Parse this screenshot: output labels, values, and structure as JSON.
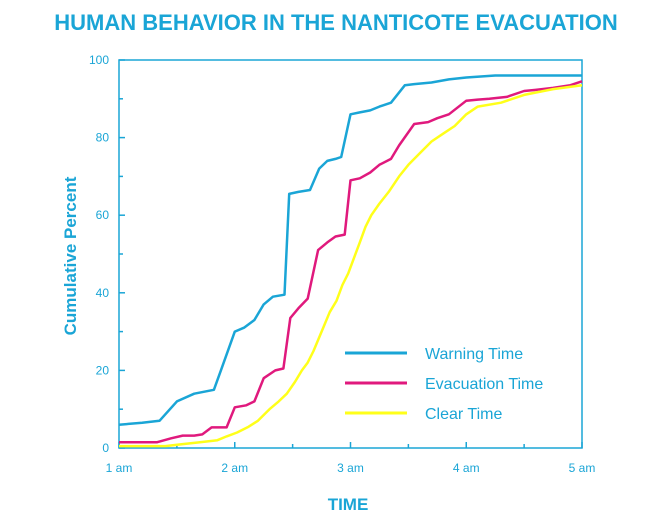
{
  "chart_data": {
    "type": "line",
    "title": "HUMAN BEHAVIOR IN THE NANTICOTE EVACUATION",
    "xlabel": "TIME",
    "ylabel": "Cumulative Percent",
    "x_ticks": [
      "1 am",
      "2 am",
      "3 am",
      "4 am",
      "5 am"
    ],
    "xlim": [
      1,
      5
    ],
    "y_ticks": [
      "0",
      "20",
      "40",
      "60",
      "80",
      "100"
    ],
    "ylim": [
      0,
      100
    ],
    "grid": false,
    "legend_position": "bottom-right",
    "colors": {
      "axis": "#1aa5d6",
      "title": "#1aa5d6"
    },
    "series": [
      {
        "name": "Warning Time",
        "color": "#1aa5d6",
        "points": [
          [
            1.0,
            6
          ],
          [
            1.2,
            6.5
          ],
          [
            1.35,
            7
          ],
          [
            1.5,
            12
          ],
          [
            1.65,
            14
          ],
          [
            1.82,
            15
          ],
          [
            1.88,
            20
          ],
          [
            2.0,
            30
          ],
          [
            2.08,
            31
          ],
          [
            2.17,
            33
          ],
          [
            2.25,
            37
          ],
          [
            2.33,
            39
          ],
          [
            2.43,
            39.5
          ],
          [
            2.47,
            65.5
          ],
          [
            2.55,
            66
          ],
          [
            2.65,
            66.5
          ],
          [
            2.73,
            72
          ],
          [
            2.8,
            74
          ],
          [
            2.87,
            74.5
          ],
          [
            2.92,
            75
          ],
          [
            3.0,
            86
          ],
          [
            3.08,
            86.5
          ],
          [
            3.17,
            87
          ],
          [
            3.25,
            88
          ],
          [
            3.35,
            89
          ],
          [
            3.47,
            93.5
          ],
          [
            3.55,
            93.8
          ],
          [
            3.7,
            94.2
          ],
          [
            3.85,
            95
          ],
          [
            4.0,
            95.5
          ],
          [
            4.25,
            96
          ],
          [
            4.5,
            96
          ],
          [
            5.0,
            96
          ]
        ]
      },
      {
        "name": "Evacuation Time",
        "color": "#e0197d",
        "points": [
          [
            1.0,
            1.5
          ],
          [
            1.33,
            1.5
          ],
          [
            1.45,
            2.5
          ],
          [
            1.55,
            3.2
          ],
          [
            1.65,
            3.2
          ],
          [
            1.72,
            3.5
          ],
          [
            1.8,
            5.3
          ],
          [
            1.93,
            5.3
          ],
          [
            2.0,
            10.5
          ],
          [
            2.1,
            11
          ],
          [
            2.17,
            12
          ],
          [
            2.25,
            18
          ],
          [
            2.35,
            20
          ],
          [
            2.42,
            20.5
          ],
          [
            2.48,
            33.5
          ],
          [
            2.55,
            36
          ],
          [
            2.63,
            38.5
          ],
          [
            2.72,
            51
          ],
          [
            2.8,
            53
          ],
          [
            2.87,
            54.5
          ],
          [
            2.95,
            55
          ],
          [
            3.0,
            69
          ],
          [
            3.08,
            69.5
          ],
          [
            3.17,
            71
          ],
          [
            3.25,
            73
          ],
          [
            3.35,
            74.5
          ],
          [
            3.42,
            78
          ],
          [
            3.55,
            83.5
          ],
          [
            3.67,
            84
          ],
          [
            3.75,
            85
          ],
          [
            3.85,
            86
          ],
          [
            4.0,
            89.5
          ],
          [
            4.1,
            89.8
          ],
          [
            4.2,
            90
          ],
          [
            4.35,
            90.5
          ],
          [
            4.5,
            92
          ],
          [
            4.6,
            92.3
          ],
          [
            4.75,
            92.8
          ],
          [
            4.9,
            93.5
          ],
          [
            5.0,
            94.5
          ]
        ]
      },
      {
        "name": "Clear Time",
        "color": "#ffff1a",
        "points": [
          [
            1.0,
            0.5
          ],
          [
            1.4,
            0.5
          ],
          [
            1.55,
            1
          ],
          [
            1.7,
            1.5
          ],
          [
            1.85,
            2
          ],
          [
            1.93,
            3
          ],
          [
            2.02,
            4
          ],
          [
            2.12,
            5.5
          ],
          [
            2.2,
            7
          ],
          [
            2.3,
            10
          ],
          [
            2.38,
            12
          ],
          [
            2.45,
            14
          ],
          [
            2.52,
            17
          ],
          [
            2.58,
            20
          ],
          [
            2.63,
            22
          ],
          [
            2.68,
            25
          ],
          [
            2.75,
            30
          ],
          [
            2.82,
            35
          ],
          [
            2.88,
            38
          ],
          [
            2.93,
            42
          ],
          [
            2.98,
            45
          ],
          [
            3.03,
            49
          ],
          [
            3.08,
            53
          ],
          [
            3.13,
            57
          ],
          [
            3.18,
            60
          ],
          [
            3.25,
            63
          ],
          [
            3.33,
            66
          ],
          [
            3.42,
            70
          ],
          [
            3.5,
            73
          ],
          [
            3.6,
            76
          ],
          [
            3.7,
            79
          ],
          [
            3.8,
            81
          ],
          [
            3.9,
            83
          ],
          [
            4.0,
            86
          ],
          [
            4.1,
            88
          ],
          [
            4.3,
            89
          ],
          [
            4.5,
            91
          ],
          [
            4.75,
            92.5
          ],
          [
            5.0,
            93.5
          ]
        ]
      }
    ]
  }
}
